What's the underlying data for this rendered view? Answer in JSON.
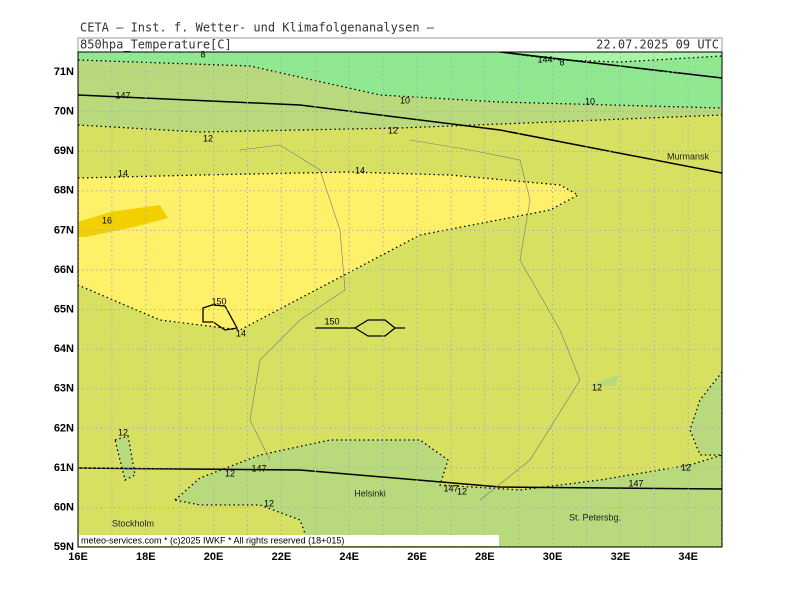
{
  "header": {
    "title": "CETA — Inst. f. Wetter- und Klimafolgenanalysen —",
    "field": "850hpa_Temperature[C]",
    "valid": "22.07.2025 09 UTC"
  },
  "map": {
    "lat_labels": [
      "71N",
      "70N",
      "69N",
      "68N",
      "67N",
      "66N",
      "65N",
      "64N",
      "63N",
      "62N",
      "61N",
      "60N",
      "59N"
    ],
    "lon_labels": [
      "16E",
      "18E",
      "20E",
      "22E",
      "24E",
      "26E",
      "28E",
      "30E",
      "32E",
      "34E"
    ],
    "contour_labels": [
      "8",
      "8",
      "144",
      "10",
      "10",
      "147",
      "12",
      "12",
      "14",
      "14",
      "16",
      "150",
      "14",
      "150",
      "12",
      "12",
      "12",
      "147",
      "12",
      "147",
      "12",
      "147",
      "12"
    ],
    "places": [
      "Murmansk",
      "Helsinki",
      "Stockholm",
      "St. Petersbg."
    ]
  },
  "footer": "meteo-services.com * (c)2025 IWKF * All rights reserved (18+015)"
}
